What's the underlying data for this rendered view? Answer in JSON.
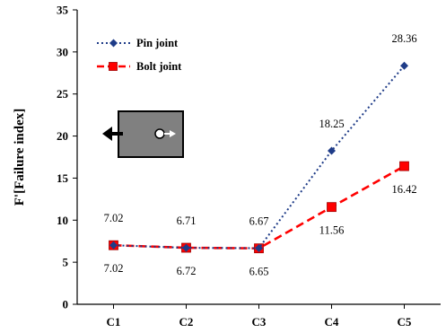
{
  "chart_data": {
    "type": "line",
    "categories": [
      "C1",
      "C2",
      "C3",
      "C4",
      "C5"
    ],
    "ylabel": "F'[Failure index]",
    "xlabel": "",
    "ylim": [
      0,
      35
    ],
    "yticks": [
      0,
      5,
      10,
      15,
      20,
      25,
      30,
      35
    ],
    "grid": false,
    "legend_position": "top-left",
    "series": [
      {
        "name": "Pin joint",
        "values": [
          7.02,
          6.71,
          6.67,
          18.25,
          28.36
        ],
        "labels": [
          "7.02",
          "6.71",
          "6.67",
          "18.25",
          "28.36"
        ],
        "color": "#1f3c88",
        "line_style": "dotted",
        "marker": "diamond"
      },
      {
        "name": "Bolt joint",
        "values": [
          7.02,
          6.72,
          6.65,
          11.56,
          16.42
        ],
        "labels": [
          "7.02",
          "6.72",
          "6.65",
          "11.56",
          "16.42"
        ],
        "color": "#ff0000",
        "line_style": "dashed",
        "marker": "square"
      }
    ]
  },
  "inset": {
    "description_icon": "joint-specimen-icon",
    "fill_color": "#808080"
  }
}
